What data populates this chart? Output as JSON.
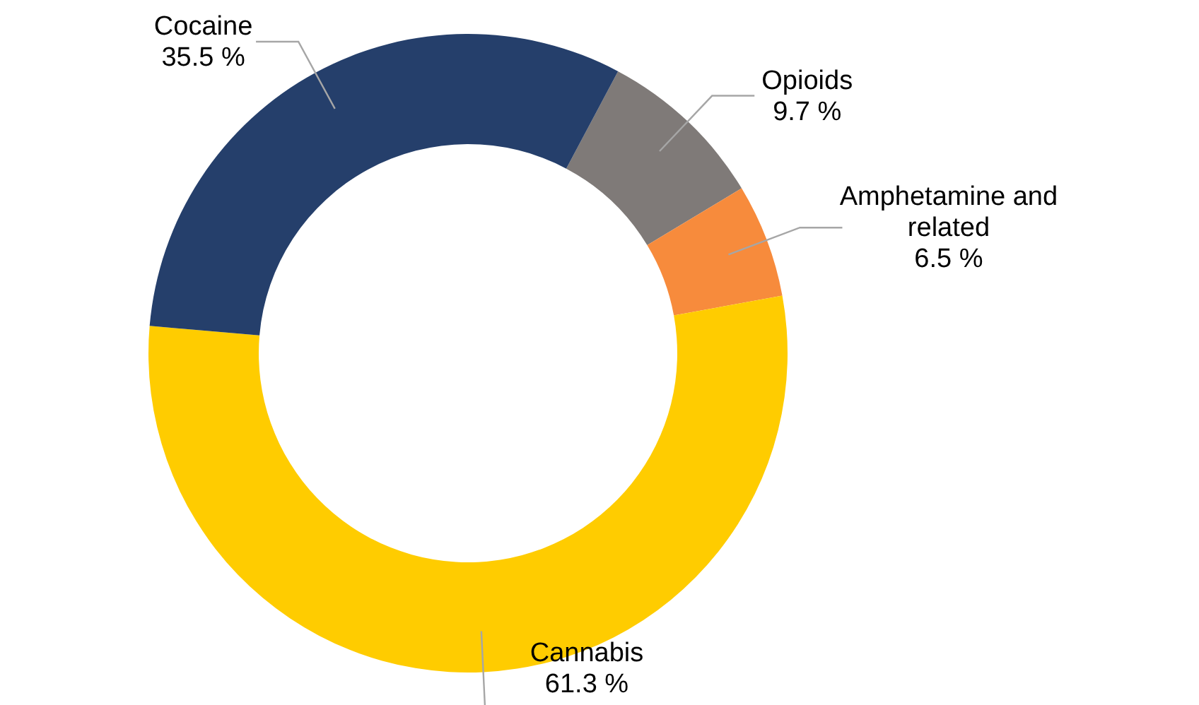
{
  "chart_data": {
    "type": "donut",
    "categories": [
      "Opioids",
      "Amphetamine and related",
      "Cannabis",
      "Cocaine"
    ],
    "values": [
      9.7,
      6.5,
      61.3,
      35.5
    ],
    "value_labels": [
      "9.7 %",
      "6.5 %",
      "61.3 %",
      "35.5 %"
    ],
    "colors": [
      "#7f7a78",
      "#f78b3c",
      "#ffcc00",
      "#253f6b"
    ]
  }
}
